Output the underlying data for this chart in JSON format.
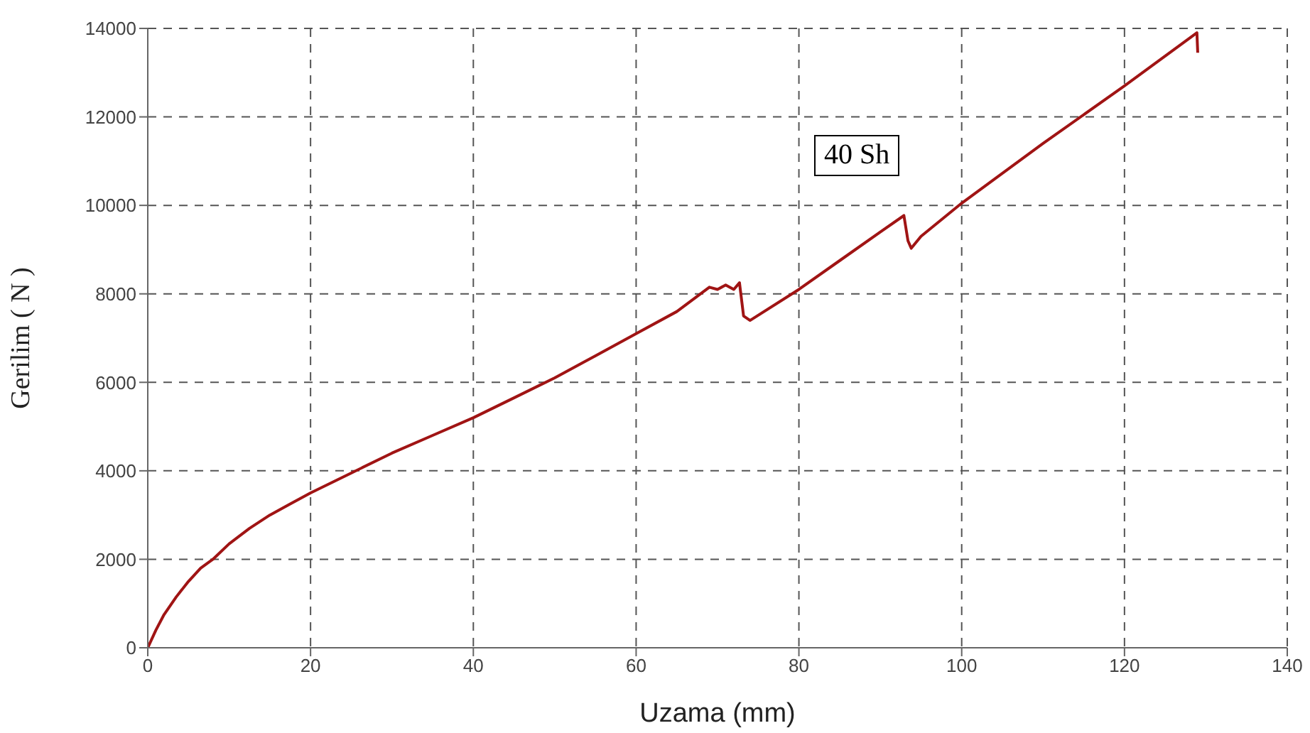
{
  "chart_data": {
    "type": "line",
    "xlabel": "Uzama (mm)",
    "ylabel": "Gerilim ( N )",
    "annotations": [
      "40 Sh"
    ],
    "series": [
      {
        "color": "#a01414",
        "x": [
          0,
          1,
          2,
          3.5,
          5,
          6.5,
          8,
          10,
          12.5,
          15,
          17.5,
          20,
          25,
          30,
          35,
          40,
          45,
          50,
          55,
          60,
          65,
          69,
          70,
          71,
          72,
          72.7,
          73.2,
          74,
          80,
          85,
          90,
          92.9,
          93.4,
          93.8,
          95,
          100,
          110,
          120,
          128.9,
          129
        ],
        "values": [
          0,
          400,
          750,
          1150,
          1500,
          1800,
          2000,
          2350,
          2700,
          3000,
          3250,
          3500,
          3950,
          4400,
          4800,
          5200,
          5650,
          6100,
          6600,
          7100,
          7600,
          8150,
          8100,
          8200,
          8100,
          8250,
          7500,
          7400,
          8100,
          8750,
          9400,
          9770,
          9200,
          9030,
          9300,
          10050,
          11400,
          12700,
          13900,
          13450
        ]
      }
    ],
    "xlim": [
      0,
      140
    ],
    "xticks": [
      0,
      20,
      40,
      60,
      80,
      100,
      120,
      140
    ],
    "ylim": [
      0,
      14000
    ],
    "yticks": [
      0,
      2000,
      4000,
      6000,
      8000,
      10000,
      12000,
      14000
    ],
    "grid": true,
    "legend": false,
    "marker": "none",
    "line_style": "solid"
  }
}
